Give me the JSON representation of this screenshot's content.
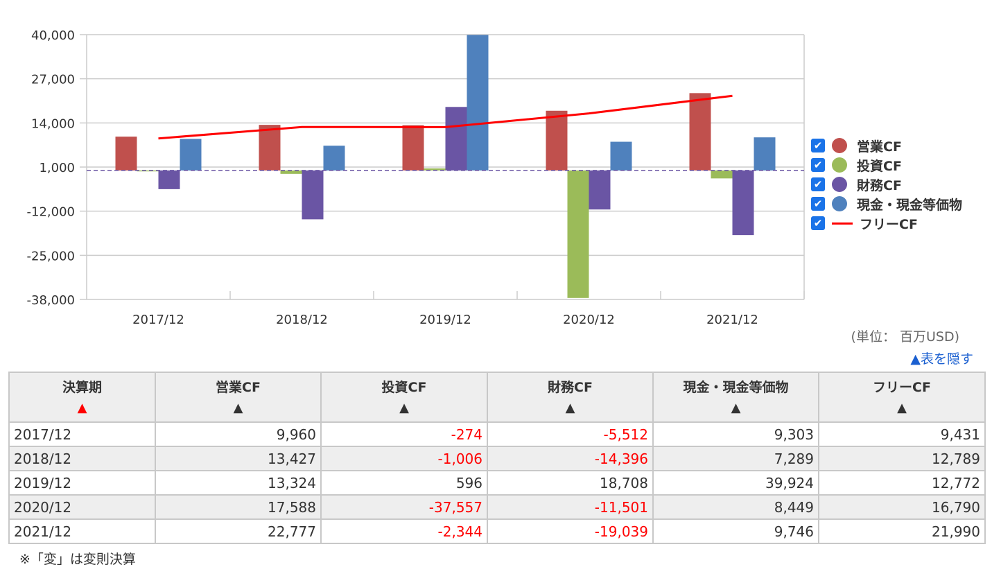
{
  "chart_data": {
    "type": "bar",
    "categories": [
      "2017/12",
      "2018/12",
      "2019/12",
      "2020/12",
      "2021/12"
    ],
    "ylim": [
      -38000,
      40000
    ],
    "yticks": [
      "40,000",
      "27,000",
      "14,000",
      "1,000",
      "-12,000",
      "-25,000",
      "-38,000"
    ],
    "ytick_values": [
      40000,
      27000,
      14000,
      1000,
      -12000,
      -25000,
      -38000
    ],
    "series": [
      {
        "name": "営業CF",
        "type": "bar",
        "color": "#c0504d",
        "values": [
          9960,
          13427,
          13324,
          17588,
          22777
        ]
      },
      {
        "name": "投資CF",
        "type": "bar",
        "color": "#9bbb59",
        "values": [
          -274,
          -1006,
          596,
          -37557,
          -2344
        ]
      },
      {
        "name": "財務CF",
        "type": "bar",
        "color": "#6a55a4",
        "values": [
          -5512,
          -14396,
          18708,
          -11501,
          -19039
        ]
      },
      {
        "name": "現金・現金等価物",
        "type": "bar",
        "color": "#4f81bd",
        "values": [
          9303,
          7289,
          39924,
          8449,
          9746
        ]
      },
      {
        "name": "フリーCF",
        "type": "line",
        "color": "#ff0000",
        "values": [
          9431,
          12789,
          12772,
          16790,
          21990
        ]
      }
    ],
    "legend": "right"
  },
  "unit": "(単位： 百万USD)",
  "hide_link": "▲表を隠す",
  "table": {
    "headers": [
      "決算期",
      "営業CF",
      "投資CF",
      "財務CF",
      "現金・現金等価物",
      "フリーCF"
    ],
    "sort_icon": "▲",
    "rows": [
      [
        "2017/12",
        "9,960",
        "-274",
        "-5,512",
        "9,303",
        "9,431"
      ],
      [
        "2018/12",
        "13,427",
        "-1,006",
        "-14,396",
        "7,289",
        "12,789"
      ],
      [
        "2019/12",
        "13,324",
        "596",
        "18,708",
        "39,924",
        "12,772"
      ],
      [
        "2020/12",
        "17,588",
        "-37,557",
        "-11,501",
        "8,449",
        "16,790"
      ],
      [
        "2021/12",
        "22,777",
        "-2,344",
        "-19,039",
        "9,746",
        "21,990"
      ]
    ]
  },
  "note": "※「変」は変則決算"
}
